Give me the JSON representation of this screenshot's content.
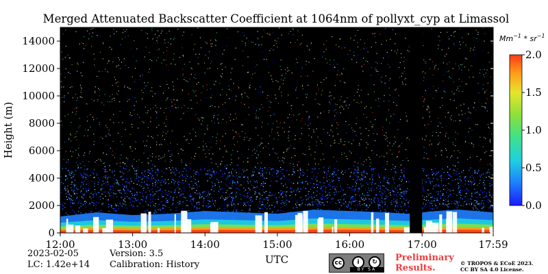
{
  "chart_data": {
    "type": "heatmap",
    "title": "Merged Attenuated Backscatter Coefficient at 1064nm of pollyxt_cyp at Limassol",
    "xlabel": "UTC",
    "ylabel": "Height (m)",
    "x_ticks": [
      "12:00",
      "13:00",
      "14:00",
      "15:00",
      "16:00",
      "17:00",
      "17:59"
    ],
    "x_range_hours": [
      12.0,
      17.983
    ],
    "y_ticks": [
      0,
      2000,
      4000,
      6000,
      8000,
      10000,
      12000,
      14000
    ],
    "ylim": [
      0,
      15000
    ],
    "colorbar": {
      "unit": "Mm^{-1}*sr^{-1}",
      "min": 0.0,
      "max": 2.0,
      "ticks": [
        "0.0",
        "0.5",
        "1.0",
        "1.5",
        "2.0"
      ],
      "colormap": [
        "#1a1aff",
        "#1e7fff",
        "#1fd0e0",
        "#3fe08c",
        "#8ce03a",
        "#e6e62a",
        "#ff9a1a",
        "#ff3a14"
      ]
    },
    "no_data_gap_hours": [
      16.83,
      17.0
    ],
    "boundary_layer_top_m": [
      [
        12.0,
        1200
      ],
      [
        12.5,
        1500
      ],
      [
        13.0,
        1300
      ],
      [
        13.5,
        1400
      ],
      [
        14.0,
        1600
      ],
      [
        14.5,
        1500
      ],
      [
        15.0,
        1400
      ],
      [
        15.5,
        1700
      ],
      [
        16.0,
        1600
      ],
      [
        16.5,
        1500
      ],
      [
        16.8,
        1400
      ],
      [
        17.2,
        1600
      ],
      [
        17.5,
        1700
      ],
      [
        17.98,
        1500
      ]
    ]
  },
  "footer": {
    "date": "2023-02-05",
    "lc": "LC: 1.42e+14",
    "version": "Version: 3.5",
    "calibration": "Calibration: History",
    "preliminary_line1": "Preliminary",
    "preliminary_line2": "Results.",
    "copyright_line1": "© TROPOS & ECoE 2023.",
    "copyright_line2": "CC BY SA 4.0 License.",
    "license_badge": "BY SA"
  },
  "colors": {
    "plot_background": "#000000",
    "text": "#000000",
    "preliminary": "#f03c3c"
  }
}
